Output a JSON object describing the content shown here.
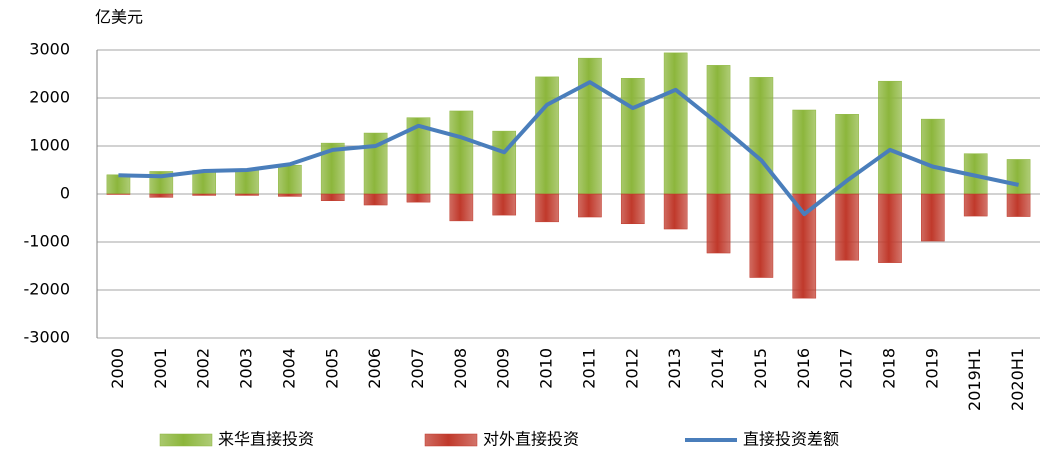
{
  "chart_data": {
    "type": "bar",
    "unit_label": "亿美元",
    "categories": [
      "2000",
      "2001",
      "2002",
      "2003",
      "2004",
      "2005",
      "2006",
      "2007",
      "2008",
      "2009",
      "2010",
      "2011",
      "2012",
      "2013",
      "2014",
      "2015",
      "2016",
      "2017",
      "2018",
      "2019",
      "2019H1",
      "2020H1"
    ],
    "series": [
      {
        "name": "来华直接投资",
        "type": "bar",
        "color": "#8cb63c",
        "values": [
          400,
          470,
          490,
          500,
          600,
          1060,
          1270,
          1590,
          1730,
          1310,
          2440,
          2830,
          2410,
          2940,
          2680,
          2430,
          1750,
          1660,
          2350,
          1560,
          840,
          720
        ]
      },
      {
        "name": "对外直接投资",
        "type": "bar",
        "color": "#c0392b",
        "values": [
          -10,
          -70,
          -30,
          -30,
          -50,
          -140,
          -230,
          -170,
          -560,
          -440,
          -580,
          -480,
          -620,
          -730,
          -1230,
          -1740,
          -2170,
          -1380,
          -1430,
          -980,
          -460,
          -470
        ]
      },
      {
        "name": "直接投资差额",
        "type": "line",
        "color": "#4a7ebb",
        "values": [
          390,
          370,
          480,
          500,
          620,
          920,
          1000,
          1420,
          1180,
          870,
          1860,
          2330,
          1790,
          2170,
          1460,
          700,
          -420,
          280,
          920,
          570,
          380,
          190
        ]
      }
    ],
    "ylim": [
      -3000,
      3000
    ],
    "yticks": [
      -3000,
      -2000,
      -1000,
      0,
      1000,
      2000,
      3000
    ],
    "grid": true,
    "legend": "bottom"
  }
}
